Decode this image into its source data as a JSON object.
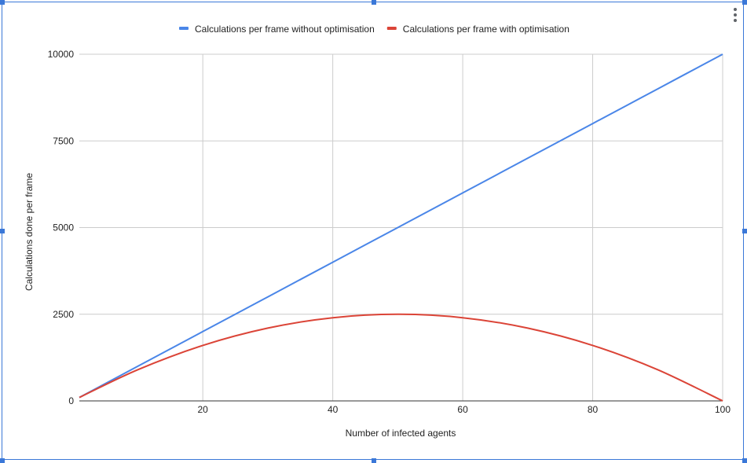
{
  "chart_data": {
    "type": "line",
    "xlabel": "Number of infected agents",
    "ylabel": "Calculations done per frame",
    "xlim": [
      1,
      100
    ],
    "ylim": [
      0,
      10000
    ],
    "x_ticks": [
      20,
      40,
      60,
      80,
      100
    ],
    "y_ticks": [
      0,
      2500,
      5000,
      7500,
      10000
    ],
    "grid": true,
    "legend_position": "top",
    "series": [
      {
        "name": "Calculations per frame without optimisation",
        "color": "#4a86e8",
        "x": [
          1,
          10,
          20,
          30,
          40,
          50,
          60,
          70,
          80,
          90,
          100
        ],
        "y": [
          100,
          1000,
          2000,
          3000,
          4000,
          5000,
          6000,
          7000,
          8000,
          9000,
          10000
        ]
      },
      {
        "name": "Calculations per frame with optimisation",
        "color": "#db4437",
        "x": [
          1,
          10,
          20,
          30,
          40,
          50,
          60,
          70,
          80,
          90,
          100
        ],
        "y": [
          99,
          900,
          1600,
          2100,
          2400,
          2500,
          2400,
          2100,
          1600,
          900,
          0
        ]
      }
    ]
  },
  "colors": {
    "selection_frame": "#3b78d8",
    "gridline": "#cccccc",
    "axis_baseline": "#333333"
  },
  "icons": {
    "menu": "vertical-dots-menu-icon"
  }
}
